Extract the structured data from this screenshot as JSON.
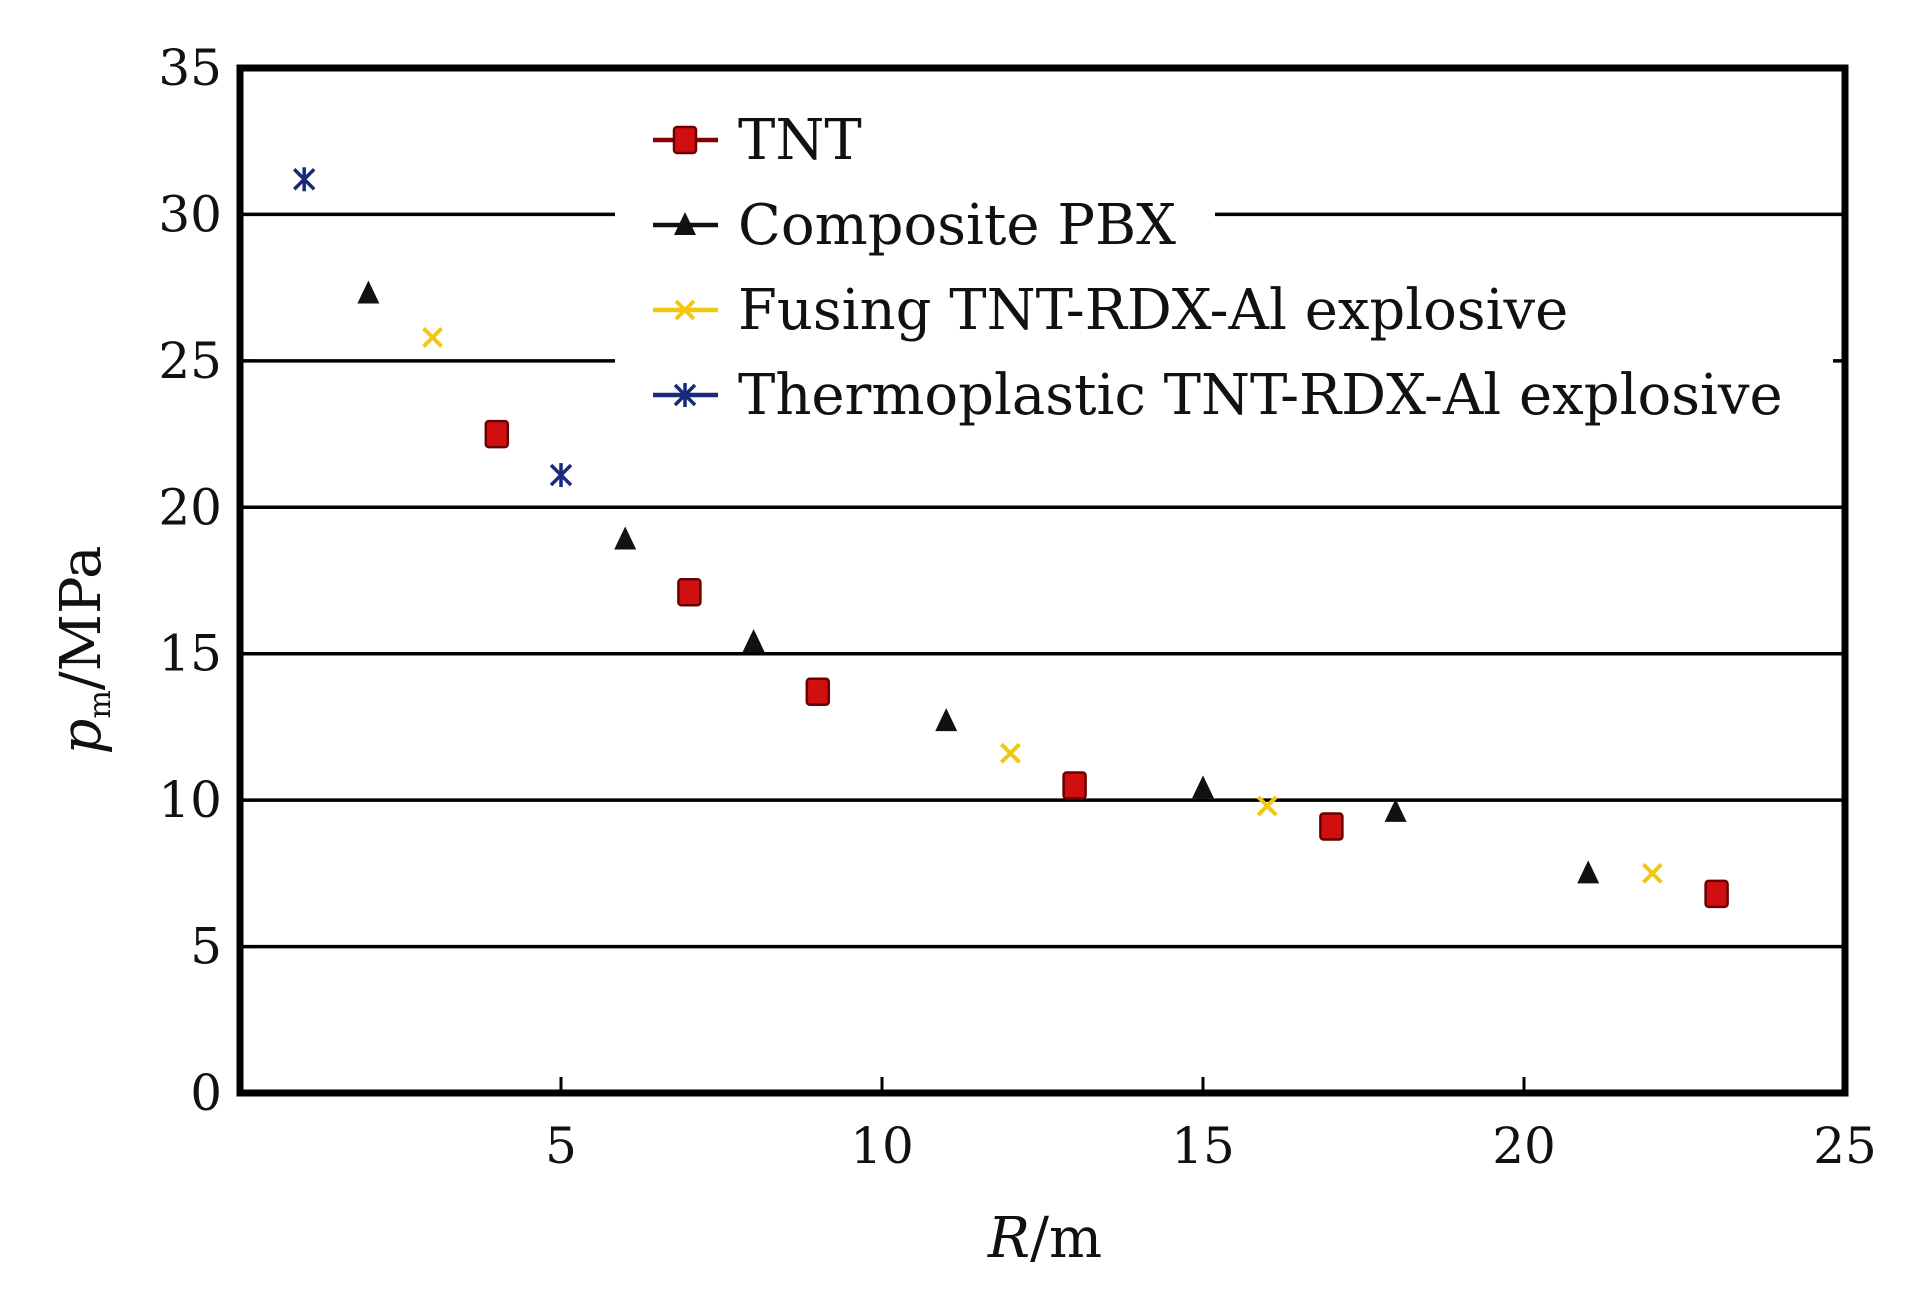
{
  "chart_data": {
    "type": "scatter",
    "title": "",
    "xlabel": {
      "symbol": "R",
      "unit": "/m"
    },
    "ylabel": {
      "symbol": "p",
      "subscript": "m",
      "unit": "/MPa"
    },
    "xlim": [
      0,
      25
    ],
    "ylim": [
      0,
      35
    ],
    "xticks": [
      5,
      10,
      15,
      20,
      25
    ],
    "yticks": [
      0,
      5,
      10,
      15,
      20,
      25,
      30,
      35
    ],
    "grid": "horizontal",
    "legend_position": "top-right",
    "series": [
      {
        "name": "TNT",
        "marker": "square",
        "color": "#d01010",
        "x": [
          4,
          7,
          9,
          13,
          17,
          23
        ],
        "y": [
          22.5,
          17.1,
          13.7,
          10.5,
          9.1,
          6.8
        ]
      },
      {
        "name": "Composite PBX",
        "marker": "triangle",
        "color": "#111111",
        "x": [
          2,
          6,
          8,
          11,
          15,
          18,
          21
        ],
        "y": [
          27.3,
          18.9,
          15.4,
          12.7,
          10.4,
          9.6,
          7.5
        ]
      },
      {
        "name": "Fusing TNT-RDX-Al explosive",
        "marker": "x",
        "color": "#f2c80f",
        "x": [
          3,
          12,
          16,
          22
        ],
        "y": [
          25.8,
          11.6,
          9.8,
          7.5
        ]
      },
      {
        "name": "Thermoplastic TNT-RDX-Al explosive",
        "marker": "asterisk",
        "color": "#1a2a7a",
        "x": [
          1,
          5
        ],
        "y": [
          31.2,
          21.1
        ]
      }
    ]
  }
}
